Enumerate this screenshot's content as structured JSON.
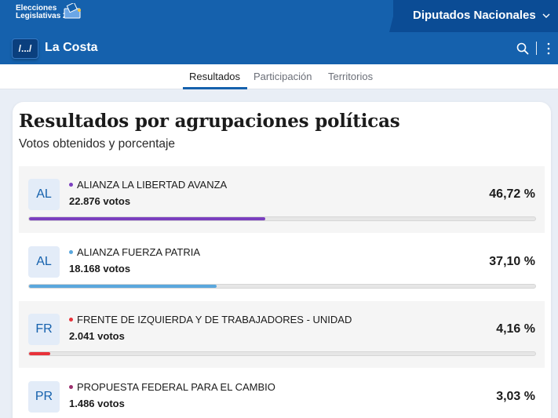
{
  "header": {
    "logo_line1": "Elecciones",
    "logo_line2": "Legislativas 2025",
    "chamber": "Diputados Nacionales"
  },
  "district": {
    "back_label": "/.../",
    "name": "La Costa"
  },
  "tabs": [
    {
      "label": "Resultados",
      "active": true
    },
    {
      "label": "Participación",
      "active": false
    },
    {
      "label": "Territorios",
      "active": false
    }
  ],
  "card": {
    "title": "Resultados por agrupaciones políticas",
    "subtitle": "Votos obtenidos y porcentaje"
  },
  "parties": [
    {
      "badge": "AL",
      "name": "ALIANZA LA LIBERTAD AVANZA",
      "votes": "22.876 votos",
      "percent": "46,72 %",
      "share": 46.72,
      "color": "#7b3fbf"
    },
    {
      "badge": "AL",
      "name": "ALIANZA FUERZA PATRIA",
      "votes": "18.168 votos",
      "percent": "37,10 %",
      "share": 37.1,
      "color": "#5aa7dd"
    },
    {
      "badge": "FR",
      "name": "FRENTE DE IZQUIERDA Y DE TRABAJADORES - UNIDAD",
      "votes": "2.041 votos",
      "percent": "4,16 %",
      "share": 4.16,
      "color": "#e8323a"
    },
    {
      "badge": "PR",
      "name": "PROPUESTA FEDERAL PARA EL CAMBIO",
      "votes": "1.486 votos",
      "percent": "3,03 %",
      "share": 3.03,
      "color": "#9b2f6e"
    }
  ],
  "colors": {
    "brand": "#1561ad",
    "brand_dark": "#0b4c95"
  }
}
